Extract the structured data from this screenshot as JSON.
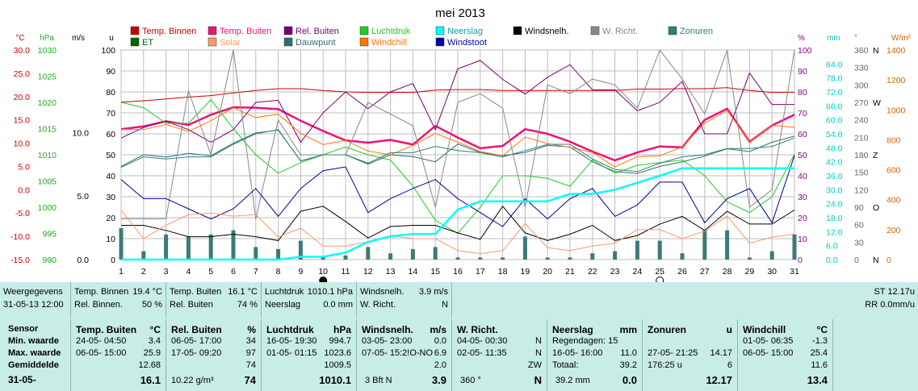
{
  "chart_data": {
    "type": "line",
    "title": "mei 2013",
    "x": [
      1,
      2,
      3,
      4,
      5,
      6,
      7,
      8,
      9,
      10,
      11,
      12,
      13,
      14,
      15,
      16,
      17,
      18,
      19,
      20,
      21,
      22,
      23,
      24,
      25,
      26,
      27,
      28,
      29,
      30,
      31
    ],
    "xticks": [
      "1",
      "2",
      "3",
      "4",
      "5",
      "6",
      "7",
      "8",
      "9",
      "10",
      "11",
      "12",
      "13",
      "14",
      "15",
      "16",
      "17",
      "18",
      "19",
      "20",
      "21",
      "22",
      "23",
      "24",
      "25",
      "26",
      "27",
      "28",
      "29",
      "30",
      "31"
    ],
    "axes": {
      "temp": {
        "unit": "°C",
        "ticks": [
          "30.0",
          "25.0",
          "20.0",
          "15.0",
          "10.0",
          "5.0",
          "0.0",
          "-5.0",
          "-10.0",
          "-15.0"
        ],
        "ylim": [
          -15,
          30
        ],
        "color": "#cc0000"
      },
      "pressure": {
        "unit": "hPa",
        "ticks": [
          "1030",
          "1025",
          "1020",
          "1015",
          "1010",
          "1005",
          "1000",
          "995",
          "990"
        ],
        "ylim": [
          990,
          1030
        ],
        "color": "#22aa22"
      },
      "wind": {
        "unit": "m/s",
        "ticks": [
          "10.0",
          "5.0",
          "0.0"
        ],
        "ylim": [
          0,
          16.5
        ],
        "color": "#000000"
      },
      "u": {
        "unit": "u",
        "ticks": [
          "100",
          "90",
          "80",
          "70",
          "60",
          "50",
          "40",
          "30",
          "20",
          "10",
          "0"
        ],
        "ylim": [
          0,
          100
        ],
        "color": "#000000"
      },
      "humidity": {
        "unit": "%",
        "ticks": [
          "100",
          "90",
          "80",
          "70",
          "60",
          "50",
          "40",
          "30",
          "20",
          "10",
          "0"
        ],
        "ylim": [
          0,
          100
        ],
        "color": "#880088"
      },
      "rain": {
        "unit": "mm",
        "ticks": [
          "84.0",
          "78.0",
          "72.0",
          "66.0",
          "60.0",
          "54.0",
          "48.0",
          "42.0",
          "36.0",
          "30.0",
          "24.0",
          "18.0",
          "12.0",
          "6.0",
          "0.0"
        ],
        "ylim": [
          0,
          90
        ],
        "color": "#00cccc"
      },
      "direction": {
        "unit": "°",
        "ticks": [
          "360",
          "330",
          "300",
          "270",
          "240",
          "210",
          "180",
          "150",
          "120",
          "90",
          "60",
          "30",
          "0"
        ],
        "letters": [
          "N",
          "",
          "",
          "W",
          "",
          "",
          "Z",
          "",
          "",
          "O",
          "",
          "",
          "N"
        ],
        "ylim": [
          0,
          360
        ],
        "color": "#666666"
      },
      "solar": {
        "unit": "W/m²",
        "ticks": [
          "1400",
          "1200",
          "1000",
          "800",
          "600",
          "400",
          "200",
          "0"
        ],
        "ylim": [
          0,
          1400
        ],
        "color": "#cc6600"
      }
    },
    "legend": [
      {
        "name": "Temp. Binnen",
        "color": "#cc0000"
      },
      {
        "name": "Temp. Buiten",
        "color": "#ee1177"
      },
      {
        "name": "Rel. Buiten",
        "color": "#770077"
      },
      {
        "name": "Luchtdruk",
        "color": "#22cc22"
      },
      {
        "name": "Neerslag",
        "color": "#00ffff"
      },
      {
        "name": "Windsnelh.",
        "color": "#000000"
      },
      {
        "name": "W. Richt.",
        "color": "#888888"
      },
      {
        "name": "Zonuren",
        "color": "#2f7f7f"
      },
      {
        "name": "ET",
        "color": "#006600"
      },
      {
        "name": "Solar",
        "color": "#ff9966"
      },
      {
        "name": "Dauwpunt",
        "color": "#2f6f6f"
      },
      {
        "name": "Windchill",
        "color": "#ff7700"
      },
      {
        "name": "Windstoot",
        "color": "#000099"
      }
    ],
    "series": [
      {
        "name": "Temp. Binnen",
        "axis": "temp",
        "color": "#cc0000",
        "width": 1,
        "values": [
          18.8,
          19.1,
          19.5,
          19.9,
          20.2,
          20.8,
          21.3,
          21.7,
          21.7,
          21.3,
          21.0,
          20.9,
          20.9,
          20.9,
          21.4,
          21.5,
          21.5,
          21.3,
          21.3,
          21.3,
          21.3,
          21.3,
          21.3,
          21.6,
          21.6,
          21.7,
          21.7,
          21.9,
          21.3,
          20.9,
          20.9
        ]
      },
      {
        "name": "Temp. Buiten",
        "axis": "temp",
        "color": "#ee1177",
        "width": 2.5,
        "values": [
          13.0,
          13.6,
          14.7,
          13.9,
          16.1,
          17.7,
          17.6,
          17.3,
          14.8,
          12.6,
          10.6,
          10.1,
          10.7,
          9.7,
          13.7,
          11.2,
          8.9,
          9.4,
          13.0,
          12.0,
          10.3,
          8.2,
          6.3,
          8.0,
          9.3,
          9.1,
          15.0,
          17.4,
          10.3,
          13.8,
          16.1
        ]
      },
      {
        "name": "Rel. Buiten",
        "axis": "humidity",
        "color": "#770077",
        "width": 1,
        "values": [
          58,
          63,
          66,
          62,
          56,
          62,
          75,
          76,
          56,
          70,
          80,
          72,
          80,
          84,
          62,
          91,
          95,
          86,
          79,
          87,
          93,
          81,
          81,
          71,
          75,
          85,
          60,
          60,
          89,
          74,
          74
        ]
      },
      {
        "name": "Luchtdruk",
        "axis": "pressure",
        "color": "#22cc22",
        "width": 1,
        "values": [
          1020.0,
          1019.0,
          1016.0,
          1016.0,
          1020.5,
          1015.0,
          1010.0,
          1006.5,
          1008.5,
          1010.0,
          1011.5,
          1010.0,
          1009.0,
          1004.0,
          997.5,
          995.0,
          1000.0,
          1006.0,
          1006.0,
          1005.5,
          1004.0,
          1009.0,
          1006.5,
          1008.0,
          1008.5,
          1009.0,
          1006.0,
          1001.0,
          999.0,
          1002.0,
          1010.1
        ]
      },
      {
        "name": "Dauwpunt",
        "axis": "temp",
        "color": "#2f6f6f",
        "width": 1,
        "values": [
          5.0,
          7.5,
          7.0,
          7.8,
          7.3,
          10.0,
          12.2,
          12.8,
          6.2,
          7.5,
          7.5,
          5.5,
          7.5,
          7.1,
          6.0,
          9.8,
          8.0,
          7.3,
          8.0,
          9.5,
          9.2,
          6.0,
          3.9,
          3.5,
          5.0,
          6.0,
          7.2,
          8.8,
          8.2,
          10.2,
          11.5
        ]
      },
      {
        "name": "Windchill",
        "axis": "temp",
        "color": "#ff7700",
        "width": 1,
        "values": [
          13.0,
          12.9,
          14.0,
          12.5,
          14.8,
          17.6,
          15.5,
          16.2,
          12.1,
          9.7,
          10.6,
          8.3,
          7.5,
          9.5,
          12.1,
          10.2,
          8.2,
          7.3,
          11.3,
          9.9,
          9.1,
          8.0,
          4.9,
          7.1,
          7.3,
          9.2,
          14.3,
          17.0,
          10.3,
          13.8,
          13.4
        ]
      },
      {
        "name": "W. Richt.",
        "axis": "direction",
        "color": "#888888",
        "width": 1,
        "values": [
          70,
          70,
          70,
          290,
          180,
          360,
          70,
          240,
          180,
          180,
          180,
          270,
          250,
          230,
          90,
          270,
          285,
          260,
          90,
          300,
          285,
          310,
          300,
          260,
          360,
          310,
          250,
          360,
          90,
          120,
          360
        ]
      },
      {
        "name": "Windsnelh.",
        "axis": "wind",
        "color": "#000000",
        "width": 1,
        "values": [
          2.7,
          2.7,
          2.3,
          1.8,
          1.8,
          2.0,
          1.8,
          1.5,
          3.8,
          4.2,
          3.0,
          1.7,
          2.6,
          2.7,
          2.7,
          2.1,
          1.6,
          4.2,
          2.1,
          1.5,
          2.0,
          2.7,
          1.5,
          1.9,
          2.8,
          3.4,
          2.3,
          3.8,
          2.8,
          2.8,
          3.9
        ]
      },
      {
        "name": "Windstoot",
        "axis": "wind",
        "color": "#000099",
        "width": 1,
        "values": [
          6.3,
          4.8,
          4.8,
          4.0,
          3.2,
          4.0,
          5.6,
          3.4,
          5.6,
          7.0,
          7.3,
          3.7,
          4.8,
          5.6,
          6.3,
          4.8,
          3.7,
          2.6,
          4.8,
          3.2,
          4.8,
          5.6,
          3.4,
          4.3,
          6.1,
          6.1,
          2.9,
          4.8,
          5.6,
          2.9,
          8.2
        ]
      },
      {
        "name": "Solar",
        "axis": "solar",
        "color": "#ff9966",
        "width": 1,
        "values": [
          330,
          140,
          230,
          300,
          310,
          290,
          300,
          150,
          210,
          90,
          90,
          120,
          160,
          140,
          140,
          60,
          40,
          60,
          240,
          80,
          60,
          90,
          110,
          200,
          200,
          140,
          190,
          290,
          110,
          150,
          170
        ]
      },
      {
        "name": "Zonuren",
        "axis": "u",
        "color": "#2f7f7f",
        "width": 1,
        "values": [
          44,
          49,
          48,
          49,
          49,
          55,
          60,
          62,
          47,
          50,
          50,
          46,
          51,
          51,
          54,
          52,
          51,
          49,
          52,
          55,
          55,
          48,
          43,
          42,
          46,
          49,
          50,
          53,
          53,
          54,
          58
        ]
      },
      {
        "name": "Neerslag",
        "axis": "rain",
        "color": "#00ffff",
        "width": 2.5,
        "values": [
          0.0,
          0.0,
          0.0,
          0.0,
          0.0,
          0.0,
          0.0,
          0.0,
          1.2,
          1.2,
          3.0,
          7.5,
          10.0,
          11.0,
          11.0,
          21.5,
          25.0,
          25.0,
          25.0,
          25.0,
          28.2,
          28.2,
          30.0,
          33.0,
          36.0,
          39.2,
          39.2,
          39.2,
          39.2,
          39.2,
          39.2
        ]
      }
    ],
    "bars": {
      "name": "Zonuren",
      "axis": "u",
      "color": "#3d7a7a",
      "values": [
        15,
        4,
        12,
        11,
        12,
        14,
        6,
        5,
        9,
        1,
        2,
        6,
        3,
        5,
        6,
        1,
        1,
        1,
        11,
        1,
        1,
        3,
        4,
        9,
        9,
        3,
        14,
        14,
        1,
        4,
        12
      ]
    },
    "moon_phases": [
      {
        "day": 10,
        "phase": "full"
      },
      {
        "day": 25,
        "phase": "new"
      }
    ]
  },
  "info_row": {
    "weergegevens": {
      "label": "Weergegevens",
      "value": "31-05-13 12:00"
    },
    "temp_binnen": {
      "label": "Temp. Binnen",
      "value": "19.4 °C",
      "label2": "Rel. Binnen.",
      "value2": "50 %"
    },
    "temp_buiten": {
      "label": "Temp. Buiten",
      "value": "16.1 °C",
      "label2": "Rel. Buiten",
      "value2": "74 %"
    },
    "luchtdruk": {
      "label": "Luchtdruk",
      "value": "1010.1 hPa",
      "label2": "Neerslag",
      "value2": "0.0 mm"
    },
    "windsnelh": {
      "label": "Windsnelh.",
      "value": "3.9 m/s",
      "label2": "W. Richt.",
      "value2": "N"
    },
    "right1": "ST 12.17u",
    "right2": "RR 0.0mm/u"
  },
  "stats": {
    "row_labels": [
      "Sensor",
      "Min. waarde",
      "Max. waarde",
      "Gemiddelde",
      "31-05-"
    ],
    "temp_buiten": {
      "title": "Temp. Buiten",
      "unit": "°C",
      "min_time": "24-05- 04:50",
      "min": "3.4",
      "max_time": "06-05- 15:00",
      "max": "25.9",
      "avg": "12.68",
      "cur": "16.1"
    },
    "rel_buiten": {
      "title": "Rel. Buiten",
      "unit": "%",
      "min_time": "06-05- 17:00",
      "min": "34",
      "max_time": "17-05- 09:20",
      "max": "97",
      "avg": "74",
      "extra": "10.22 g/m³",
      "cur": "74"
    },
    "luchtdruk": {
      "title": "Luchtdruk",
      "unit": "hPa",
      "min_time": "16-05- 19:30",
      "min": "994.7",
      "max_time": "01-05- 01:15",
      "max": "1023.6",
      "avg": "1009.5",
      "cur": "1010.1"
    },
    "windsnelh": {
      "title": "Windsnelh.",
      "unit": "m/s",
      "min_time": "03-05- 23:00",
      "min": "0.0",
      "max_time": "07-05- 15:2!O-NO",
      "max": "6.9",
      "avg": "2.0",
      "extra": "3 Bft N",
      "cur": "3.9"
    },
    "w_richt": {
      "title": "W. Richt.",
      "min_time": "04-05- 00:30",
      "min": "N",
      "max_time": "02-05- 11:35",
      "max": "N",
      "avg": "ZW",
      "extra": "360 °",
      "cur": "N"
    },
    "neerslag": {
      "title": "Neerslag",
      "unit": "mm",
      "l1": "Regendagen: 15",
      "l2_time": "16-05- 16:00",
      "l2": "11.0",
      "l3": "Totaal:",
      "l3v": "39.2",
      "extra": "39.2 mm",
      "cur": "0.0"
    },
    "zonuren": {
      "title": "Zonuren",
      "unit": "u",
      "l2_time": "27-05- 21:25",
      "l2": "14.17",
      "l3": "176:25 u",
      "l3v": "6",
      "cur": "12.17"
    },
    "windchill": {
      "title": "Windchill",
      "unit": "°C",
      "min_time": "01-05- 06:35",
      "min": "-1.3",
      "max_time": "06-05- 15:00",
      "max": "25.4",
      "avg": "11.6",
      "cur": "13.4"
    }
  }
}
